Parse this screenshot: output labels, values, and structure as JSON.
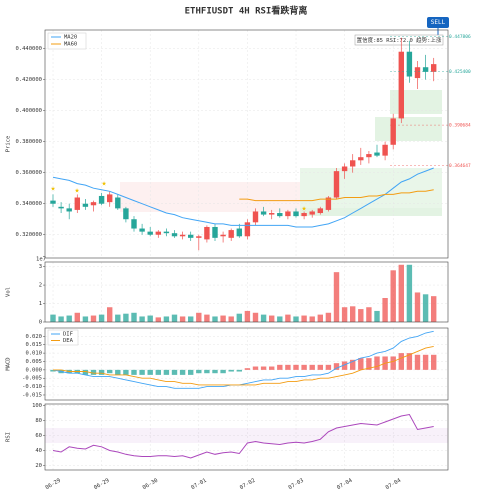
{
  "chart_data": [
    {
      "type": "candlestick",
      "title": "ETHFIUSDT  4H  RSI看跌背离",
      "ylabel": "Price",
      "signal": "SELL",
      "info": "置信度:85  RSI:72.0  趋势:上涨",
      "up_color": "#ef5350",
      "down_color": "#26a69a",
      "ylim": [
        0.305,
        0.452
      ],
      "yticks": [
        {
          "value": 0.32,
          "label": "0.320000"
        },
        {
          "value": 0.34,
          "label": "0.340000"
        },
        {
          "value": 0.36,
          "label": "0.360000"
        },
        {
          "value": 0.38,
          "label": "0.380000"
        },
        {
          "value": 0.4,
          "label": "0.400000"
        },
        {
          "value": 0.42,
          "label": "0.420000"
        },
        {
          "value": 0.44,
          "label": "0.440000"
        }
      ],
      "open": [
        0.342,
        0.338,
        0.337,
        0.336,
        0.34,
        0.339,
        0.345,
        0.341,
        0.344,
        0.337,
        0.33,
        0.324,
        0.322,
        0.32,
        0.322,
        0.321,
        0.319,
        0.32,
        0.318,
        0.317,
        0.325,
        0.319,
        0.318,
        0.324,
        0.319,
        0.328,
        0.335,
        0.333,
        0.334,
        0.332,
        0.335,
        0.332,
        0.333,
        0.334,
        0.336,
        0.344,
        0.361,
        0.364,
        0.368,
        0.37,
        0.373,
        0.371,
        0.378,
        0.395,
        0.438,
        0.421,
        0.428,
        0.425
      ],
      "high": [
        0.346,
        0.341,
        0.34,
        0.346,
        0.343,
        0.342,
        0.347,
        0.348,
        0.346,
        0.338,
        0.332,
        0.327,
        0.325,
        0.323,
        0.324,
        0.323,
        0.322,
        0.322,
        0.32,
        0.326,
        0.327,
        0.322,
        0.324,
        0.327,
        0.33,
        0.337,
        0.338,
        0.336,
        0.337,
        0.336,
        0.337,
        0.335,
        0.336,
        0.338,
        0.345,
        0.363,
        0.366,
        0.372,
        0.376,
        0.374,
        0.378,
        0.38,
        0.398,
        0.447,
        0.445,
        0.432,
        0.436,
        0.434
      ],
      "low": [
        0.338,
        0.334,
        0.33,
        0.334,
        0.336,
        0.335,
        0.339,
        0.338,
        0.336,
        0.328,
        0.322,
        0.32,
        0.319,
        0.318,
        0.319,
        0.318,
        0.317,
        0.316,
        0.31,
        0.315,
        0.316,
        0.315,
        0.316,
        0.318,
        0.317,
        0.326,
        0.332,
        0.33,
        0.331,
        0.33,
        0.331,
        0.33,
        0.331,
        0.333,
        0.335,
        0.343,
        0.356,
        0.36,
        0.365,
        0.366,
        0.37,
        0.368,
        0.375,
        0.392,
        0.418,
        0.414,
        0.42,
        0.419
      ],
      "close": [
        0.34,
        0.337,
        0.335,
        0.344,
        0.338,
        0.341,
        0.34,
        0.346,
        0.337,
        0.33,
        0.324,
        0.322,
        0.32,
        0.322,
        0.321,
        0.319,
        0.32,
        0.318,
        0.319,
        0.325,
        0.318,
        0.32,
        0.323,
        0.319,
        0.328,
        0.335,
        0.333,
        0.334,
        0.332,
        0.335,
        0.332,
        0.334,
        0.335,
        0.337,
        0.344,
        0.361,
        0.364,
        0.368,
        0.37,
        0.372,
        0.371,
        0.378,
        0.395,
        0.438,
        0.422,
        0.428,
        0.425,
        0.43
      ],
      "series": [
        {
          "name": "MA20",
          "color": "#42a5f5",
          "values": [
            0.357,
            0.356,
            0.355,
            0.353,
            0.352,
            0.35,
            0.349,
            0.348,
            0.346,
            0.344,
            0.342,
            0.34,
            0.338,
            0.336,
            0.334,
            0.333,
            0.331,
            0.33,
            0.329,
            0.328,
            0.327,
            0.327,
            0.326,
            0.326,
            0.326,
            0.326,
            0.326,
            0.326,
            0.326,
            0.326,
            0.325,
            0.325,
            0.325,
            0.326,
            0.327,
            0.329,
            0.331,
            0.334,
            0.337,
            0.34,
            0.343,
            0.346,
            0.35,
            0.354,
            0.356,
            0.359,
            0.361,
            0.363
          ]
        },
        {
          "name": "MA60",
          "color": "#f39c12",
          "values": [
            null,
            null,
            null,
            null,
            null,
            null,
            null,
            null,
            null,
            null,
            null,
            null,
            null,
            null,
            null,
            null,
            null,
            null,
            null,
            null,
            null,
            null,
            null,
            0.343,
            0.343,
            0.342,
            0.342,
            0.342,
            0.342,
            0.342,
            0.342,
            0.342,
            0.342,
            0.343,
            0.343,
            0.343,
            0.344,
            0.344,
            0.344,
            0.345,
            0.345,
            0.346,
            0.346,
            0.347,
            0.347,
            0.348,
            0.348,
            0.349
          ]
        }
      ],
      "price_levels": {
        "values": [
          0.447806,
          0.4254,
          0.390684,
          0.364647
        ],
        "value_labels": [
          "0.447806",
          "0.425400",
          "0.390684",
          "0.364647"
        ],
        "colors": [
          "#26a69a",
          "#26a69a",
          "#ef5350",
          "#ef5350"
        ]
      }
    },
    {
      "type": "bar",
      "ylabel": "Vol",
      "scale_label": "1e7",
      "ylim": [
        0,
        3.25
      ],
      "yticks": [
        0,
        1,
        2,
        3
      ],
      "values": [
        0.4,
        0.3,
        0.35,
        0.5,
        0.3,
        0.35,
        0.4,
        0.8,
        0.4,
        0.45,
        0.5,
        0.3,
        0.35,
        0.25,
        0.3,
        0.4,
        0.3,
        0.3,
        0.5,
        0.4,
        0.3,
        0.35,
        0.3,
        0.45,
        0.6,
        0.5,
        0.4,
        0.35,
        0.3,
        0.4,
        0.3,
        0.35,
        0.3,
        0.4,
        0.5,
        2.7,
        0.8,
        0.85,
        0.7,
        0.8,
        0.6,
        1.3,
        2.8,
        3.1,
        3.1,
        1.6,
        1.5,
        1.4
      ]
    },
    {
      "type": "macd",
      "ylabel": "MACD",
      "ylim": [
        -0.018,
        0.025
      ],
      "yticks": [
        {
          "value": -0.015,
          "label": "-0.015"
        },
        {
          "value": -0.01,
          "label": "-0.010"
        },
        {
          "value": -0.005,
          "label": "-0.005"
        },
        {
          "value": 0,
          "label": "0.000"
        },
        {
          "value": 0.005,
          "label": "0.005"
        },
        {
          "value": 0.01,
          "label": "0.010"
        },
        {
          "value": 0.015,
          "label": "0.015"
        },
        {
          "value": 0.02,
          "label": "0.020"
        }
      ],
      "series": [
        {
          "name": "DIF",
          "color": "#42a5f5",
          "values": [
            0.0,
            -0.001,
            -0.002,
            -0.002,
            -0.003,
            -0.004,
            -0.004,
            -0.004,
            -0.005,
            -0.006,
            -0.007,
            -0.008,
            -0.009,
            -0.01,
            -0.01,
            -0.011,
            -0.011,
            -0.011,
            -0.011,
            -0.01,
            -0.01,
            -0.01,
            -0.009,
            -0.009,
            -0.008,
            -0.007,
            -0.006,
            -0.006,
            -0.005,
            -0.005,
            -0.004,
            -0.004,
            -0.003,
            -0.003,
            -0.002,
            0.001,
            0.003,
            0.005,
            0.007,
            0.008,
            0.01,
            0.011,
            0.013,
            0.017,
            0.019,
            0.02,
            0.022,
            0.023
          ]
        },
        {
          "name": "DEA",
          "color": "#f39c12",
          "values": [
            0.0,
            0.0,
            -0.001,
            -0.001,
            -0.001,
            -0.002,
            -0.002,
            -0.003,
            -0.003,
            -0.003,
            -0.004,
            -0.005,
            -0.005,
            -0.006,
            -0.007,
            -0.007,
            -0.008,
            -0.008,
            -0.009,
            -0.009,
            -0.009,
            -0.009,
            -0.009,
            -0.009,
            -0.009,
            -0.009,
            -0.008,
            -0.008,
            -0.008,
            -0.007,
            -0.007,
            -0.006,
            -0.006,
            -0.005,
            -0.005,
            -0.004,
            -0.003,
            -0.002,
            0.0,
            0.001,
            0.002,
            0.004,
            0.005,
            0.007,
            0.009,
            0.011,
            0.013,
            0.014
          ]
        }
      ],
      "histogram": [
        -0.001,
        -0.002,
        -0.002,
        -0.002,
        -0.003,
        -0.003,
        -0.003,
        -0.002,
        -0.003,
        -0.003,
        -0.003,
        -0.003,
        -0.003,
        -0.003,
        -0.003,
        -0.003,
        -0.003,
        -0.003,
        -0.002,
        -0.002,
        -0.002,
        -0.002,
        -0.001,
        -0.001,
        0.001,
        0.002,
        0.002,
        0.002,
        0.003,
        0.003,
        0.003,
        0.003,
        0.003,
        0.003,
        0.003,
        0.004,
        0.005,
        0.006,
        0.007,
        0.007,
        0.008,
        0.008,
        0.008,
        0.01,
        0.01,
        0.009,
        0.009,
        0.009
      ]
    },
    {
      "type": "line",
      "ylabel": "RSI",
      "ylim": [
        14,
        102
      ],
      "yticks": [
        20,
        40,
        60,
        80,
        100
      ],
      "color": "#ab47bc",
      "values": [
        40,
        38,
        45,
        43,
        42,
        47,
        45,
        40,
        38,
        35,
        33,
        32,
        32,
        33,
        33,
        32,
        33,
        30,
        34,
        38,
        35,
        37,
        38,
        36,
        50,
        52,
        50,
        49,
        48,
        50,
        51,
        50,
        52,
        55,
        65,
        70,
        72,
        74,
        76,
        75,
        74,
        78,
        82,
        86,
        88,
        68,
        70,
        72
      ],
      "categories": [
        "06-29",
        null,
        null,
        null,
        null,
        null,
        "06-29",
        null,
        null,
        null,
        null,
        null,
        "06-30",
        null,
        null,
        null,
        null,
        null,
        "07-01",
        null,
        null,
        null,
        null,
        null,
        "07-02",
        null,
        null,
        null,
        null,
        null,
        "07-03",
        null,
        null,
        null,
        null,
        null,
        "07-04",
        null,
        null,
        null,
        null,
        null,
        "07-04",
        null,
        null,
        null,
        null,
        null
      ]
    }
  ]
}
